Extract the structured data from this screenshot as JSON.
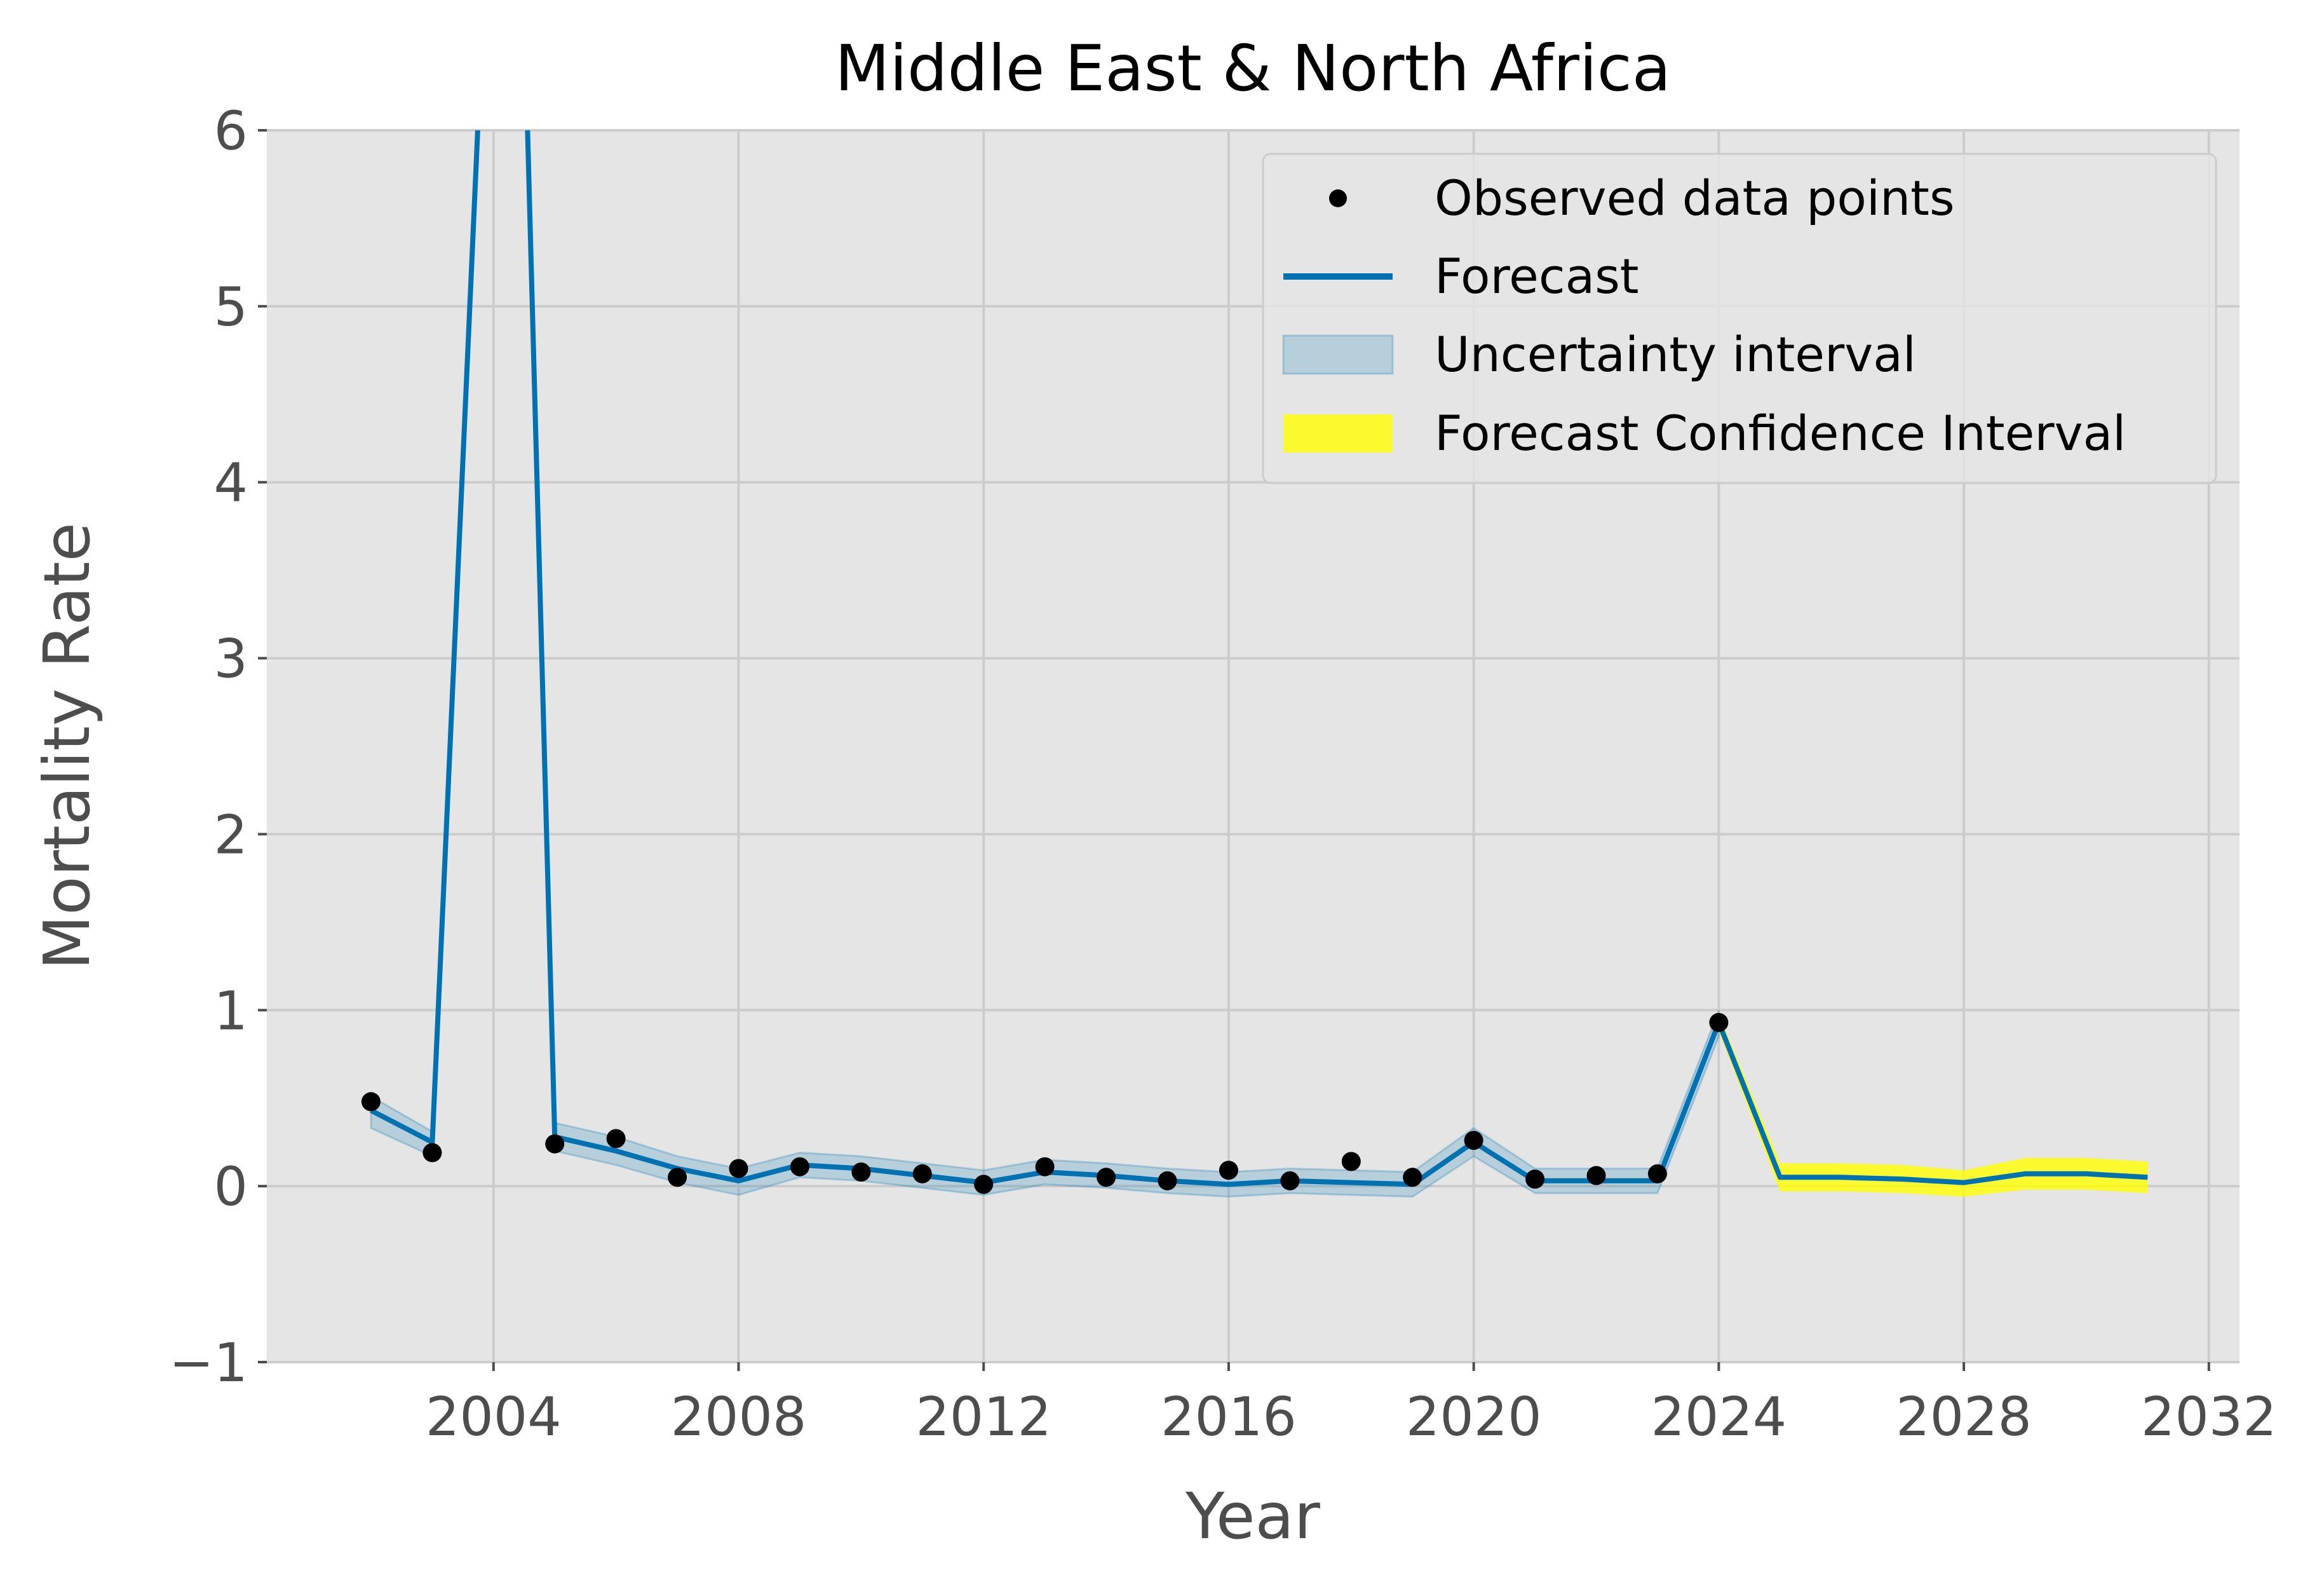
{
  "chart_data": {
    "type": "line",
    "title": "Middle East & North Africa",
    "xlabel": "Year",
    "ylabel": "Mortality Rate",
    "xlim": [
      2000.3,
      2032.5
    ],
    "ylim": [
      -1,
      6
    ],
    "x_ticks": [
      2004,
      2008,
      2012,
      2016,
      2020,
      2024,
      2028,
      2032
    ],
    "y_ticks": [
      -1,
      0,
      1,
      2,
      3,
      4,
      5,
      6
    ],
    "x_tick_labels": [
      "2004",
      "2008",
      "2012",
      "2016",
      "2020",
      "2024",
      "2028",
      "2032"
    ],
    "y_tick_labels": [
      "−1",
      "0",
      "1",
      "2",
      "3",
      "4",
      "5",
      "6"
    ],
    "grid": true,
    "legend_position": "top-right",
    "legend": [
      {
        "label": "Observed data points",
        "kind": "marker",
        "color": "#000000"
      },
      {
        "label": "Forecast",
        "kind": "line",
        "color": "#0072B2"
      },
      {
        "label": "Uncertainty interval",
        "kind": "patch",
        "color": "#0072B2"
      },
      {
        "label": "Forecast Confidence Interval",
        "kind": "patch",
        "color": "#ffff00"
      }
    ],
    "observed": {
      "name": "Observed data points",
      "x": [
        2002,
        2003,
        2005,
        2006,
        2007,
        2008,
        2009,
        2010,
        2011,
        2012,
        2013,
        2014,
        2015,
        2016,
        2017,
        2018,
        2019,
        2020,
        2021,
        2022,
        2023,
        2024
      ],
      "y": [
        0.48,
        0.19,
        0.24,
        0.27,
        0.05,
        0.1,
        0.11,
        0.08,
        0.07,
        0.01,
        0.11,
        0.05,
        0.03,
        0.09,
        0.03,
        0.14,
        0.05,
        0.26,
        0.04,
        0.06,
        0.07,
        0.93
      ],
      "color": "#000000"
    },
    "fit": {
      "name": "Forecast",
      "x": [
        2002,
        2003,
        2004,
        2004.4,
        2005,
        2006,
        2007,
        2008,
        2009,
        2010,
        2011,
        2012,
        2013,
        2014,
        2015,
        2016,
        2017,
        2018,
        2019,
        2020,
        2021,
        2022,
        2023,
        2024
      ],
      "y": [
        0.43,
        0.25,
        8.0,
        8.0,
        0.28,
        0.2,
        0.1,
        0.03,
        0.12,
        0.1,
        0.06,
        0.02,
        0.08,
        0.06,
        0.03,
        0.01,
        0.03,
        0.02,
        0.01,
        0.25,
        0.03,
        0.03,
        0.03,
        0.93
      ],
      "lower": [
        0.33,
        0.17,
        7.9,
        7.9,
        0.2,
        0.12,
        0.02,
        -0.05,
        0.05,
        0.03,
        -0.01,
        -0.05,
        0.01,
        -0.01,
        -0.04,
        -0.06,
        -0.04,
        -0.05,
        -0.06,
        0.17,
        -0.04,
        -0.04,
        -0.04,
        0.85
      ],
      "upper": [
        0.51,
        0.31,
        8.1,
        8.1,
        0.36,
        0.28,
        0.17,
        0.1,
        0.19,
        0.17,
        0.13,
        0.09,
        0.15,
        0.13,
        0.1,
        0.08,
        0.1,
        0.09,
        0.08,
        0.33,
        0.1,
        0.1,
        0.1,
        1.0
      ],
      "color": "#0072B2"
    },
    "forecast": {
      "name": "Forecast",
      "x": [
        2024,
        2025,
        2026,
        2027,
        2028,
        2029,
        2030,
        2031
      ],
      "y": [
        0.93,
        0.05,
        0.05,
        0.04,
        0.02,
        0.07,
        0.07,
        0.05
      ],
      "lower": [
        0.88,
        -0.03,
        -0.03,
        -0.04,
        -0.06,
        -0.02,
        -0.02,
        -0.04
      ],
      "upper": [
        0.98,
        0.13,
        0.13,
        0.12,
        0.09,
        0.16,
        0.16,
        0.14
      ],
      "color": "#0072B2",
      "interval_color": "#ffff00"
    },
    "colors": {
      "plot_background": "#e5e5e5",
      "grid": "#cccccc",
      "uncertainty_fill": "#0072B2",
      "forecast_ci_fill": "#ffff00"
    }
  }
}
